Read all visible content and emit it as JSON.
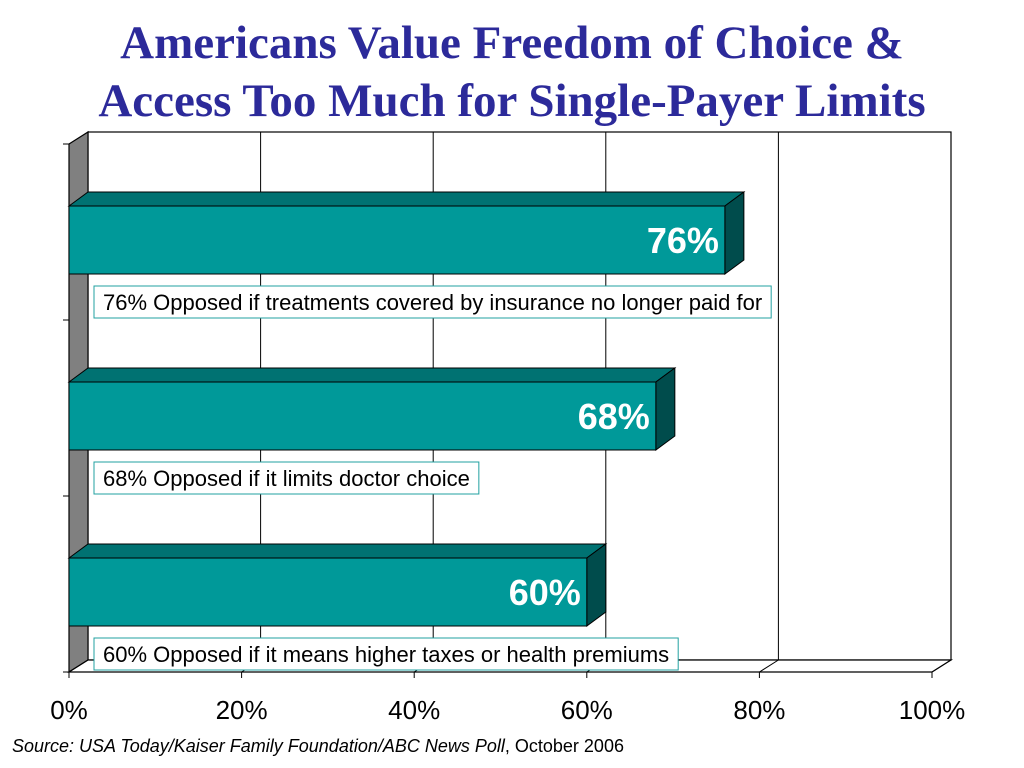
{
  "title": {
    "line1": "Americans Value Freedom of Choice &",
    "line2": "Access Too Much for Single-Payer Limits"
  },
  "source": {
    "italic": "Source: USA Today/Kaiser Family Foundation/ABC News Poll",
    "plain": ", October 2006"
  },
  "colors": {
    "title": "#2c2a9a",
    "bar_front": "#009999",
    "bar_top": "#007272",
    "bar_side": "#004c4c",
    "wall_left": "#808080",
    "callout_border": "#20a0a0"
  },
  "chart_data": {
    "type": "bar",
    "orientation": "horizontal",
    "style": "3d",
    "categories": [
      "",
      "",
      ""
    ],
    "values": [
      76,
      68,
      60
    ],
    "data_labels": [
      "76%",
      "68%",
      "60%"
    ],
    "annotations": [
      "76% Opposed if treatments covered by insurance no longer paid for",
      "68% Opposed if it limits doctor choice",
      "60% Opposed if it means higher taxes or health premiums"
    ],
    "x_ticks": [
      "0%",
      "20%",
      "40%",
      "60%",
      "80%",
      "100%"
    ],
    "xlim": [
      0,
      100
    ],
    "grid": true,
    "legend": "none",
    "xlabel": "",
    "ylabel": ""
  }
}
